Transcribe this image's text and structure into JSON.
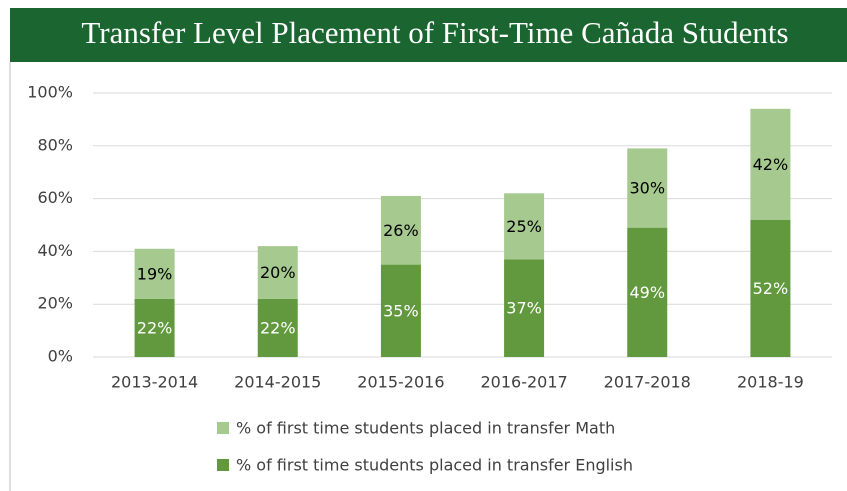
{
  "chart_data": {
    "type": "stacked_bar",
    "title": "Transfer Level Placement of First-Time Cañada Students",
    "categories": [
      "2013-2014",
      "2014-2015",
      "2015-2016",
      "2016-2017",
      "2017-2018",
      "2018-19"
    ],
    "series": [
      {
        "name": "% of first time students placed in transfer English",
        "color": "#62993e",
        "values": [
          22,
          22,
          35,
          37,
          49,
          52
        ],
        "value_labels": [
          "22%",
          "22%",
          "35%",
          "37%",
          "49%",
          "52%"
        ]
      },
      {
        "name": "% of first time students placed in transfer Math",
        "color": "#a5c98e",
        "values": [
          19,
          20,
          26,
          25,
          30,
          42
        ],
        "value_labels": [
          "19%",
          "20%",
          "26%",
          "25%",
          "30%",
          "42%"
        ]
      }
    ],
    "ylim": [
      0,
      100
    ],
    "yticks": [
      {
        "value": 0,
        "label": "0%"
      },
      {
        "value": 20,
        "label": "20%"
      },
      {
        "value": 40,
        "label": "40%"
      },
      {
        "value": 60,
        "label": "60%"
      },
      {
        "value": 80,
        "label": "80%"
      },
      {
        "value": 100,
        "label": "100%"
      }
    ],
    "grid": true
  }
}
